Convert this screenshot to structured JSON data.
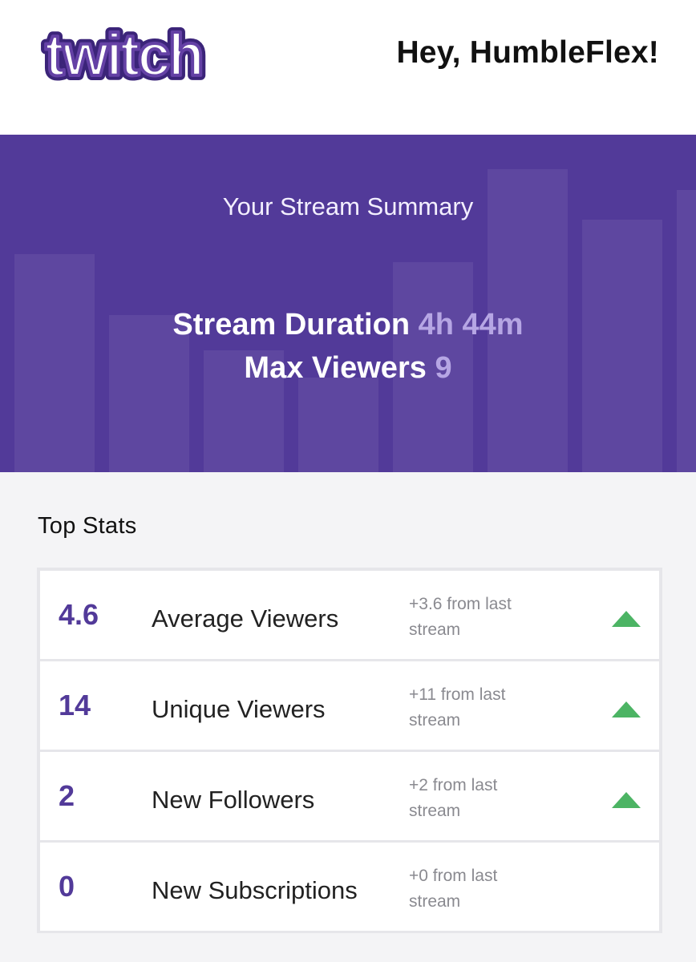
{
  "header": {
    "logo_text": "twitch",
    "greeting": "Hey, HumbleFlex!"
  },
  "colors": {
    "brand_purple": "#523a99",
    "trend_up_green": "#4cb464"
  },
  "hero": {
    "title": "Your Stream Summary",
    "stream_duration_label": "Stream Duration",
    "stream_duration_value": "4h 44m",
    "max_viewers_label": "Max Viewers",
    "max_viewers_value": "9"
  },
  "top_stats": {
    "heading": "Top Stats",
    "rows": [
      {
        "value": "4.6",
        "label": "Average Viewers",
        "change_line1": "+3.6 from last",
        "change_line2": "stream",
        "trend_icon": "triangle-up-icon"
      },
      {
        "value": "14",
        "label": "Unique Viewers",
        "change_line1": "+11 from last",
        "change_line2": "stream",
        "trend_icon": "triangle-up-icon"
      },
      {
        "value": "2",
        "label": "New Followers",
        "change_line1": "+2 from last",
        "change_line2": "stream",
        "trend_icon": "triangle-up-icon"
      },
      {
        "value": "0",
        "label": "New Subscriptions",
        "change_line1": "+0 from last",
        "change_line2": "stream",
        "trend_icon": ""
      }
    ]
  }
}
